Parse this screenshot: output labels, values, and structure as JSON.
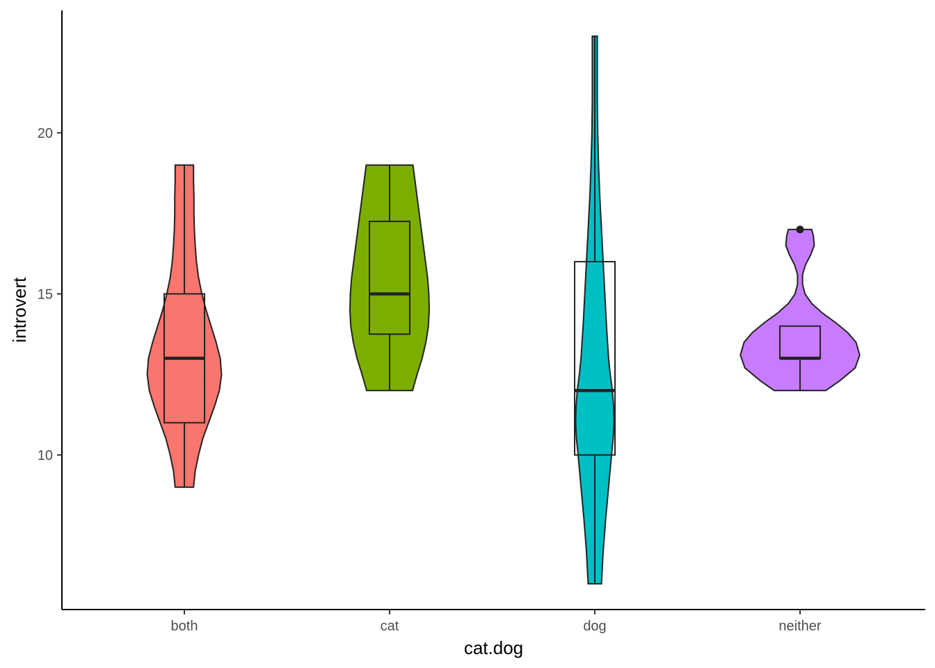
{
  "chart_data": {
    "type": "violin",
    "xlabel": "cat.dog",
    "ylabel": "introvert",
    "categories": [
      "both",
      "cat",
      "dog",
      "neither"
    ],
    "colors": [
      "#F8766D",
      "#7CAE00",
      "#00BFC4",
      "#C77CFF"
    ],
    "ylim": [
      5.2,
      23.8
    ],
    "yticks": [
      10,
      15,
      20
    ],
    "groups": [
      {
        "category": "both",
        "box": {
          "lower_whisker": 9,
          "q1": 11,
          "median": 13,
          "q3": 15,
          "upper_whisker": 19
        },
        "outliers": [],
        "density": [
          [
            9,
            0.22
          ],
          [
            9.5,
            0.26
          ],
          [
            10,
            0.34
          ],
          [
            10.5,
            0.44
          ],
          [
            11,
            0.58
          ],
          [
            11.5,
            0.72
          ],
          [
            12,
            0.84
          ],
          [
            12.5,
            0.89
          ],
          [
            13,
            0.86
          ],
          [
            13.5,
            0.76
          ],
          [
            14,
            0.64
          ],
          [
            14.5,
            0.52
          ],
          [
            15,
            0.42
          ],
          [
            15.5,
            0.34
          ],
          [
            16,
            0.29
          ],
          [
            16.5,
            0.26
          ],
          [
            17,
            0.24
          ],
          [
            17.5,
            0.23
          ],
          [
            18,
            0.23
          ],
          [
            18.5,
            0.22
          ],
          [
            19,
            0.22
          ]
        ]
      },
      {
        "category": "cat",
        "box": {
          "lower_whisker": 12,
          "q1": 13.75,
          "median": 15,
          "q3": 17.25,
          "upper_whisker": 19
        },
        "outliers": [],
        "density": [
          [
            12,
            0.55
          ],
          [
            12.5,
            0.66
          ],
          [
            13,
            0.78
          ],
          [
            13.5,
            0.87
          ],
          [
            14,
            0.93
          ],
          [
            14.5,
            0.95
          ],
          [
            15,
            0.94
          ],
          [
            15.5,
            0.91
          ],
          [
            16,
            0.86
          ],
          [
            16.5,
            0.81
          ],
          [
            17,
            0.76
          ],
          [
            17.5,
            0.71
          ],
          [
            18,
            0.66
          ],
          [
            18.5,
            0.61
          ],
          [
            19,
            0.56
          ]
        ]
      },
      {
        "category": "dog",
        "box": {
          "lower_whisker": 6,
          "q1": 10,
          "median": 12,
          "q3": 16,
          "upper_whisker": 23
        },
        "outliers": [],
        "density": [
          [
            6,
            0.16
          ],
          [
            7,
            0.2
          ],
          [
            8,
            0.26
          ],
          [
            9,
            0.33
          ],
          [
            10,
            0.4
          ],
          [
            10.5,
            0.44
          ],
          [
            11,
            0.46
          ],
          [
            11.5,
            0.45
          ],
          [
            12,
            0.42
          ],
          [
            12.5,
            0.37
          ],
          [
            13,
            0.33
          ],
          [
            14,
            0.28
          ],
          [
            15,
            0.24
          ],
          [
            16,
            0.2
          ],
          [
            17,
            0.16
          ],
          [
            18,
            0.12
          ],
          [
            19,
            0.09
          ],
          [
            20,
            0.07
          ],
          [
            21,
            0.06
          ],
          [
            22,
            0.06
          ],
          [
            23,
            0.06
          ]
        ]
      },
      {
        "category": "neither",
        "box": {
          "lower_whisker": 12,
          "q1": 13,
          "median": 13,
          "q3": 14,
          "upper_whisker": 14
        },
        "outliers": [
          17
        ],
        "density": [
          [
            12,
            0.62
          ],
          [
            12.3,
            0.95
          ],
          [
            12.7,
            1.32
          ],
          [
            13.1,
            1.43
          ],
          [
            13.5,
            1.34
          ],
          [
            13.8,
            1.14
          ],
          [
            14.1,
            0.86
          ],
          [
            14.4,
            0.54
          ],
          [
            14.7,
            0.28
          ],
          [
            15,
            0.12
          ],
          [
            15.3,
            0.06
          ],
          [
            15.6,
            0.06
          ],
          [
            15.9,
            0.13
          ],
          [
            16.2,
            0.25
          ],
          [
            16.5,
            0.34
          ],
          [
            16.8,
            0.32
          ],
          [
            17,
            0.28
          ]
        ]
      }
    ]
  }
}
